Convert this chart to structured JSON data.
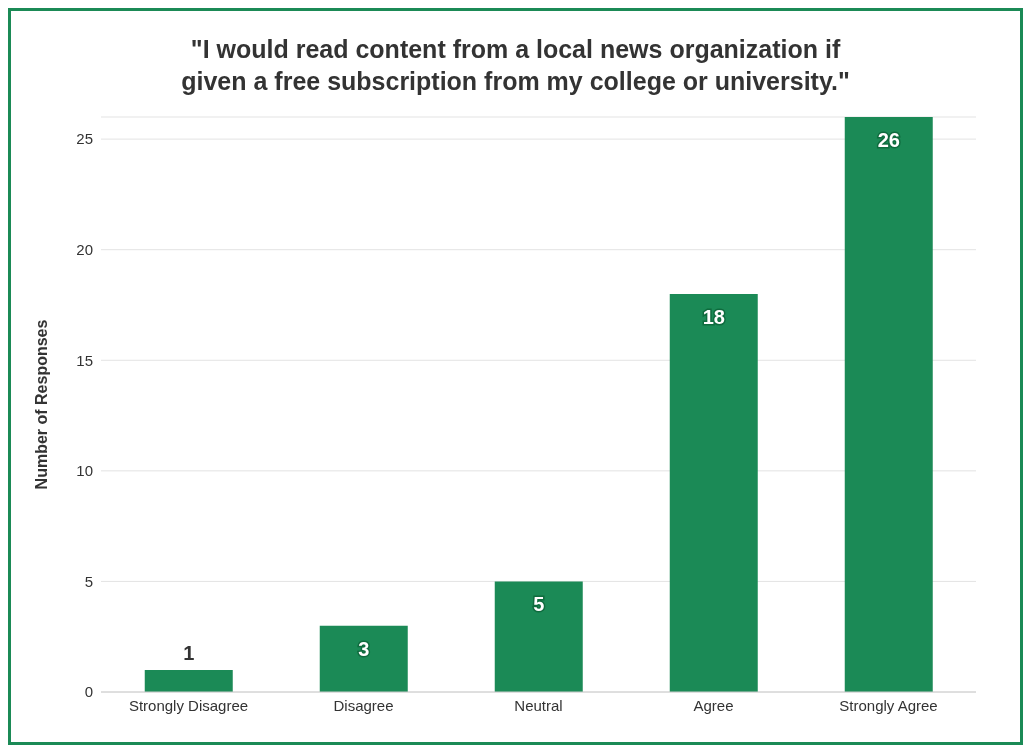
{
  "chart_data": {
    "type": "bar",
    "title": "\"I would read content from a local news organization if given a free subscription from my college or university.\"",
    "ylabel": "Number of Responses",
    "categories": [
      "Strongly Disagree",
      "Disagree",
      "Neutral",
      "Agree",
      "Strongly Agree"
    ],
    "values": [
      1,
      3,
      5,
      18,
      26
    ],
    "color": "#1b8a56",
    "ylim": [
      0,
      26
    ],
    "yticks": [
      0,
      5,
      10,
      15,
      20,
      25
    ],
    "grid": "y",
    "data_labels": true,
    "legend": false
  }
}
